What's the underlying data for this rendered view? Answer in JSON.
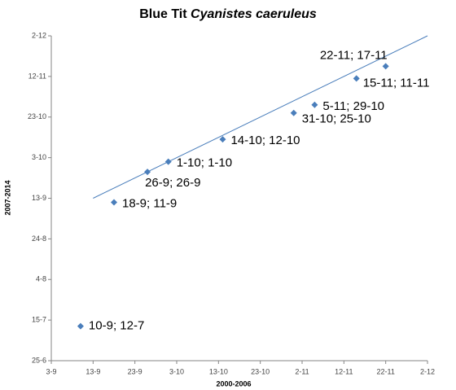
{
  "chart_data": {
    "type": "scatter",
    "title": [
      "Blue Tit",
      "Cyanistes caeruleus"
    ],
    "x_label": "2000-2006",
    "y_label": "2007-2014",
    "series": [
      {
        "color": "#4a7ebb",
        "x": [
          253,
          261,
          269,
          274,
          287,
          304,
          309,
          319,
          326
        ],
        "values": [
          193,
          254,
          269,
          274,
          285,
          298,
          302,
          315,
          321
        ],
        "value_labels": [
          "10-9; 12-7",
          "18-9; 11-9",
          "26-9; 26-9",
          "1-10; 1-10",
          "14-10; 12-10",
          "31-10; 25-10",
          "5-11; 29-10",
          "15-11; 11-11",
          "22-11; 17-11"
        ]
      }
    ],
    "trendline": {
      "color": "#4a7ebb",
      "x": [
        256,
        336
      ],
      "values": [
        256,
        336
      ]
    },
    "xlim": [
      246,
      336
    ],
    "xticks": [
      {
        "value": 246,
        "label": "3-9"
      },
      {
        "value": 256,
        "label": "13-9"
      },
      {
        "value": 266,
        "label": "23-9"
      },
      {
        "value": 276,
        "label": "3-10"
      },
      {
        "value": 286,
        "label": "13-10"
      },
      {
        "value": 296,
        "label": "23-10"
      },
      {
        "value": 306,
        "label": "2-11"
      },
      {
        "value": 316,
        "label": "12-11"
      },
      {
        "value": 326,
        "label": "22-11"
      },
      {
        "value": 336,
        "label": "2-12"
      }
    ],
    "ylim": [
      176,
      336
    ],
    "yticks": [
      {
        "value": 176,
        "label": "25-6"
      },
      {
        "value": 196,
        "label": "15-7"
      },
      {
        "value": 216,
        "label": "4-8"
      },
      {
        "value": 236,
        "label": "24-8"
      },
      {
        "value": 256,
        "label": "13-9"
      },
      {
        "value": 276,
        "label": "3-10"
      },
      {
        "value": 296,
        "label": "23-10"
      },
      {
        "value": 316,
        "label": "12-11"
      },
      {
        "value": 336,
        "label": "2-12"
      }
    ],
    "grid": false
  }
}
